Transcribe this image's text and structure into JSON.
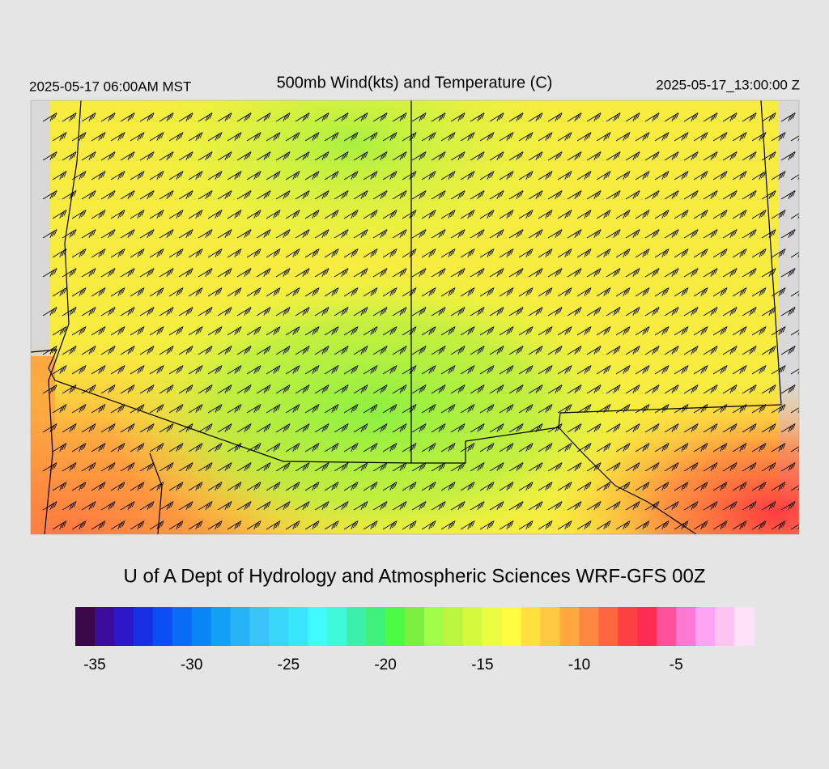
{
  "header": {
    "title": "500mb Wind(kts) and Temperature (C)",
    "valid_local": "2025-05-17 06:00AM MST",
    "valid_utc": "2025-05-17_13:00:00 Z"
  },
  "footer": {
    "credit": "U of A Dept of Hydrology and Atmospheric Sciences WRF-GFS 00Z"
  },
  "colorbar": {
    "range": [
      -36,
      -1
    ],
    "ticks": [
      -35,
      -30,
      -25,
      -20,
      -15,
      -10,
      -5
    ],
    "colors": [
      "#3a0848",
      "#3c0c9c",
      "#2c18c8",
      "#1830e4",
      "#0a4ef4",
      "#0a6cf4",
      "#0a86f4",
      "#12a0f6",
      "#28b2f6",
      "#3ac4f8",
      "#38d6f8",
      "#3ae6fc",
      "#40fafc",
      "#3ef8d8",
      "#3cf0ac",
      "#40f07c",
      "#4cfc44",
      "#7cf040",
      "#a0fc48",
      "#bcf440",
      "#d4fa40",
      "#ecfc40",
      "#fffc40",
      "#ffe040",
      "#ffc840",
      "#ffa840",
      "#ff8840",
      "#ff6640",
      "#ff4040",
      "#ff2c54",
      "#ff509c",
      "#ff78d4",
      "#ffa4f4",
      "#ffc4f0",
      "#ffe2f8"
    ]
  }
}
